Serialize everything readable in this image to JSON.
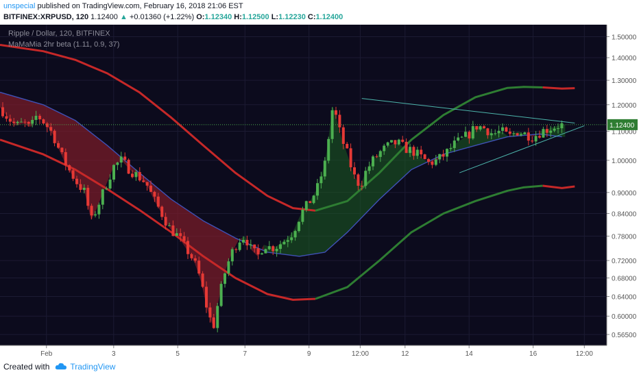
{
  "header": {
    "user": "unspecial",
    "published_text": " published on TradingView.com, February 16, 2018 21:06 EST",
    "symbol_line": "BITFINEX:XRPUSD, 120",
    "last": "1.12400",
    "arrow": "▲",
    "change": "+0.01360 (+1.22%)",
    "open_label": "O:",
    "open": "1.12340",
    "high_label": "H:",
    "high": "1.12500",
    "low_label": "L:",
    "low": "1.12230",
    "close_label": "C:",
    "close": "1.12400"
  },
  "legend": {
    "series_title": "Ripple / Dollar, 120, BITFINEX",
    "indicator": "MaMaMia 2hr beta (1.11, 0.9, 37)"
  },
  "footer": {
    "created_with": "Created with",
    "brand": "TradingView"
  },
  "colors": {
    "background": "#0c0b1d",
    "up_candle": "#4caf50",
    "down_candle": "#e53935",
    "red_band": "#c62828",
    "green_band": "#2e7d32",
    "blue_ma": "#3f51b5",
    "triangle_line": "#4db6ac",
    "price_label_bg": "#2e7d32"
  },
  "chart_data": {
    "type": "line",
    "y_scale": "log",
    "ylim": [
      0.545,
      1.56
    ],
    "y_ticks": [
      1.5,
      1.4,
      1.3,
      1.2,
      1.1,
      1.0,
      0.9,
      0.84,
      0.78,
      0.72,
      0.68,
      0.64,
      0.6,
      0.565
    ],
    "y_tick_labels": [
      "1.50000",
      "1.40000",
      "1.30000",
      "1.20000",
      "1.10000",
      "1.00000",
      "0.90000",
      "0.84000",
      "0.78000",
      "0.72000",
      "0.68000",
      "0.64000",
      "0.60000",
      "0.56500"
    ],
    "x_tick_labels": [
      "Feb",
      "3",
      "5",
      "7",
      "9",
      "12:00",
      "12",
      "14",
      "16",
      "12:00"
    ],
    "x_tick_positions": [
      0.1,
      2.2,
      4.2,
      6.3,
      8.3,
      9.9,
      11.3,
      13.3,
      15.3,
      16.9
    ],
    "xlim": [
      -1.35,
      17.6
    ],
    "last_price": 1.124,
    "last_price_label": "1.12400",
    "close_points": {
      "x": [
        -1.35,
        -1.1,
        -0.85,
        -0.6,
        -0.4,
        -0.2,
        0.05,
        0.3,
        0.55,
        0.8,
        1.05,
        1.3,
        1.5,
        1.7,
        1.95,
        2.2,
        2.45,
        2.7,
        2.95,
        3.2,
        3.45,
        3.7,
        3.95,
        4.2,
        4.45,
        4.7,
        4.9,
        5.1,
        5.3,
        5.5,
        5.7,
        5.9,
        6.1,
        6.3,
        6.5,
        6.7,
        6.9,
        7.1,
        7.3,
        7.55,
        7.8,
        8.05,
        8.3,
        8.55,
        8.8,
        9.05,
        9.3,
        9.5,
        9.7,
        9.9,
        10.1,
        10.3,
        10.55,
        10.8,
        11.05,
        11.3,
        11.55,
        11.8,
        12.05,
        12.3,
        12.55,
        12.8,
        13.05,
        13.3,
        13.55,
        13.8,
        14.05,
        14.3,
        14.55,
        14.8,
        15.05,
        15.3,
        15.55,
        15.8,
        16.05,
        16.3
      ],
      "y": [
        1.19,
        1.15,
        1.12,
        1.13,
        1.11,
        1.16,
        1.13,
        1.09,
        1.02,
        0.97,
        0.93,
        0.9,
        0.82,
        0.86,
        0.92,
        0.98,
        1.0,
        0.97,
        0.95,
        0.93,
        0.88,
        0.84,
        0.8,
        0.78,
        0.75,
        0.72,
        0.68,
        0.62,
        0.575,
        0.64,
        0.7,
        0.74,
        0.77,
        0.78,
        0.745,
        0.73,
        0.76,
        0.75,
        0.755,
        0.77,
        0.79,
        0.84,
        0.87,
        0.91,
        0.99,
        1.2,
        1.08,
        1.02,
        0.95,
        0.92,
        0.97,
        1.0,
        1.03,
        1.05,
        1.06,
        1.04,
        1.03,
        1.01,
        0.99,
        1.0,
        1.02,
        1.05,
        1.07,
        1.09,
        1.12,
        1.11,
        1.09,
        1.1,
        1.08,
        1.1,
        1.09,
        1.08,
        1.1,
        1.11,
        1.12,
        1.124
      ]
    },
    "series": [
      {
        "name": "",
        "role": "red-upper-band",
        "x": [
          -1.35,
          0,
          1,
          2,
          3,
          4,
          5,
          6,
          7,
          7.8,
          8.5
        ],
        "y": [
          1.46,
          1.43,
          1.39,
          1.33,
          1.25,
          1.15,
          1.05,
          0.96,
          0.89,
          0.855,
          0.848
        ]
      },
      {
        "name": "",
        "role": "green-upper-band",
        "x": [
          8.5,
          9.5,
          10.5,
          11.5,
          12.5,
          13.5,
          14.5,
          15,
          15.6
        ],
        "y": [
          0.848,
          0.875,
          0.96,
          1.07,
          1.16,
          1.23,
          1.268,
          1.272,
          1.27
        ]
      },
      {
        "name": "",
        "role": "red-upper-band-tail",
        "x": [
          15.6,
          16.2,
          16.6
        ],
        "y": [
          1.27,
          1.265,
          1.267
        ]
      },
      {
        "name": "",
        "role": "red-lower-band",
        "x": [
          -1.35,
          0,
          1,
          2,
          3,
          4,
          5,
          6,
          7,
          7.8,
          8.5
        ],
        "y": [
          1.07,
          1.02,
          0.97,
          0.91,
          0.85,
          0.79,
          0.73,
          0.68,
          0.645,
          0.633,
          0.635
        ]
      },
      {
        "name": "",
        "role": "green-lower-band",
        "x": [
          8.5,
          9.5,
          10.5,
          11.5,
          12.5,
          13.5,
          14.5,
          15,
          15.6
        ],
        "y": [
          0.635,
          0.66,
          0.72,
          0.79,
          0.84,
          0.875,
          0.905,
          0.915,
          0.92
        ]
      },
      {
        "name": "",
        "role": "red-lower-band-tail",
        "x": [
          15.6,
          16.2,
          16.6
        ],
        "y": [
          0.92,
          0.913,
          0.918
        ]
      },
      {
        "name": "",
        "role": "blue-ma",
        "x": [
          -1.35,
          0,
          1,
          2,
          3,
          4,
          5,
          6,
          7,
          8,
          8.8,
          9.5,
          10.5,
          11.5,
          12.5,
          13.5,
          14.5,
          15.5,
          16.2
        ],
        "y": [
          1.25,
          1.2,
          1.14,
          1.05,
          0.96,
          0.88,
          0.82,
          0.775,
          0.74,
          0.73,
          0.74,
          0.79,
          0.88,
          0.97,
          1.02,
          1.05,
          1.08,
          1.09,
          1.08
        ]
      }
    ],
    "triangle": {
      "upper": {
        "x": [
          9.95,
          16.6
        ],
        "y": [
          1.225,
          1.13
        ]
      },
      "lower": {
        "x": [
          13.0,
          16.9
        ],
        "y": [
          0.96,
          1.12
        ]
      }
    }
  }
}
